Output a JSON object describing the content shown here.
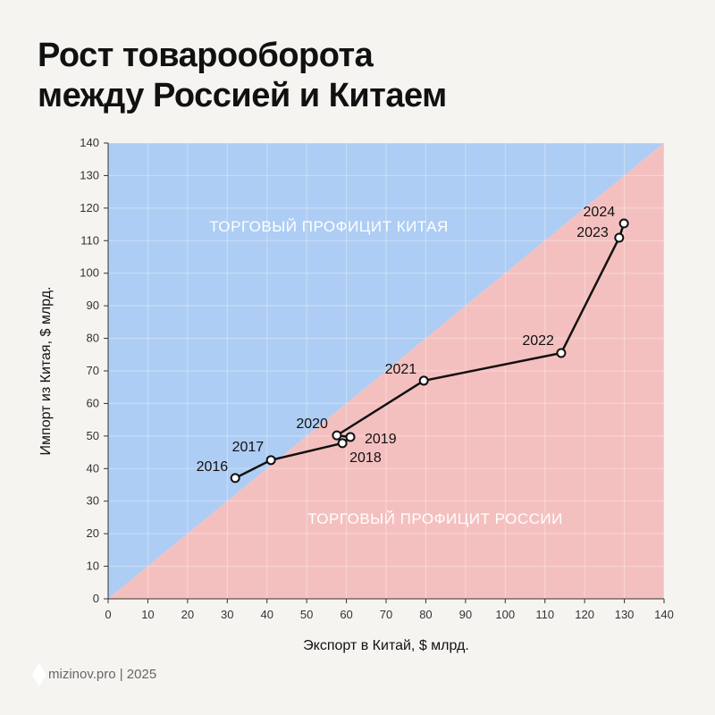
{
  "title_line1": "Рост товарооборота",
  "title_line2": "между Россией и Китаем",
  "footer": "mizinov.pro | 2025",
  "chart_data": {
    "type": "line",
    "title": "Рост товарооборота между Россией и Китаем",
    "xlabel": "Экспорт в Китай, $ млрд.",
    "ylabel": "Импорт из Китая, $ млрд.",
    "xlim": [
      0,
      140
    ],
    "ylim": [
      0,
      140
    ],
    "xticks": [
      0,
      10,
      20,
      30,
      40,
      50,
      60,
      70,
      80,
      90,
      100,
      110,
      120,
      130,
      140
    ],
    "yticks": [
      0,
      10,
      20,
      30,
      40,
      50,
      60,
      70,
      80,
      90,
      100,
      110,
      120,
      130,
      140
    ],
    "grid": true,
    "regions": [
      {
        "label": "ТОРГОВЫЙ ПРОФИЦИТ КИТАЯ",
        "color": "#aecdf4"
      },
      {
        "label": "ТОРГОВЫЙ ПРОФИЦИТ РОССИИ",
        "color": "#f4c0bf"
      }
    ],
    "points": [
      {
        "label": "2016",
        "x": 32,
        "y": 37.1
      },
      {
        "label": "2017",
        "x": 41,
        "y": 42.6
      },
      {
        "label": "2018",
        "x": 59,
        "y": 47.8
      },
      {
        "label": "2019",
        "x": 61,
        "y": 49.7
      },
      {
        "label": "2020",
        "x": 57.6,
        "y": 50.2
      },
      {
        "label": "2021",
        "x": 79.5,
        "y": 67
      },
      {
        "label": "2022",
        "x": 114.1,
        "y": 75.5
      },
      {
        "label": "2023",
        "x": 128.7,
        "y": 110.9
      },
      {
        "label": "2024",
        "x": 129.9,
        "y": 115.3
      }
    ]
  }
}
